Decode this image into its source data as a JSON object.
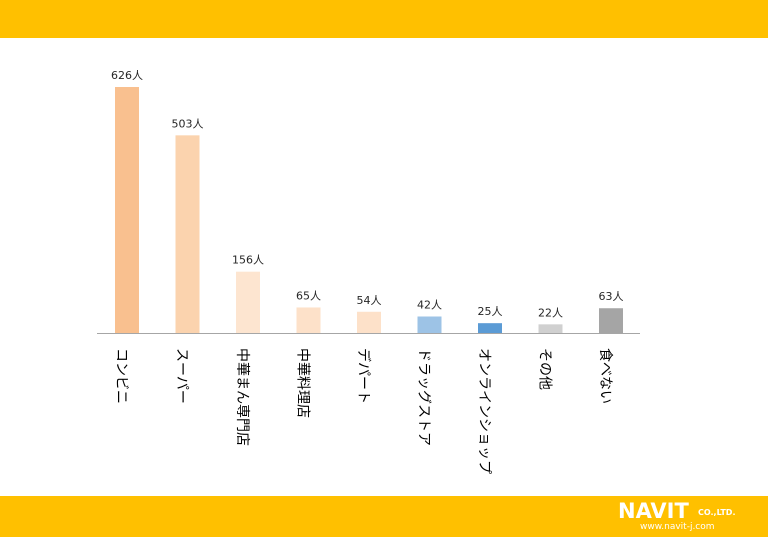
{
  "brand": {
    "name": "NAVIT",
    "company_suffix": "CO.,LTD.",
    "url": "www.navit-j.com"
  },
  "colors": {
    "band": "#ffc000",
    "axis": "#a6a6a6"
  },
  "chart_data": {
    "type": "bar",
    "title": "",
    "xlabel": "",
    "ylabel": "",
    "ylim": [
      0,
      626
    ],
    "grid": false,
    "legend": "none",
    "categories": [
      "コンビニ",
      "スーパー",
      "中華まん専門店",
      "中華料理店",
      "デパート",
      "ドラッグストア",
      "オンラインショップ",
      "その他",
      "食べない"
    ],
    "values": [
      626,
      503,
      156,
      65,
      54,
      42,
      25,
      22,
      63
    ],
    "value_labels": [
      "626人",
      "503人",
      "156人",
      "65人",
      "54人",
      "42人",
      "25人",
      "22人",
      "63人"
    ],
    "bar_colors": [
      "#f9c08f",
      "#fbd3ae",
      "#fde5d0",
      "#fde1c9",
      "#fde1c9",
      "#9dc3e6",
      "#5b9bd5",
      "#d0d0d0",
      "#a5a5a5"
    ]
  }
}
